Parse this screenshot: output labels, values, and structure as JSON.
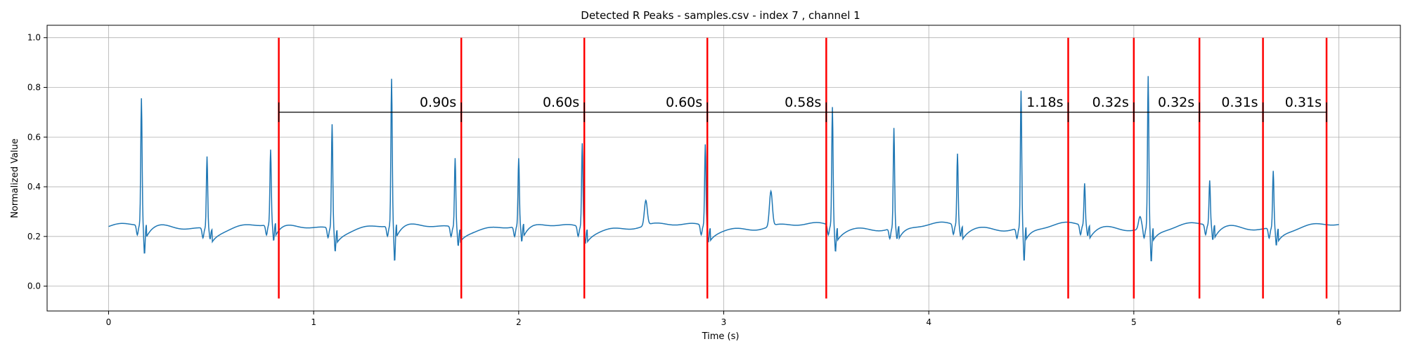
{
  "chart_data": {
    "type": "line",
    "title": "Detected R Peaks - samples.csv - index 7 , channel 1",
    "xlabel": "Time (s)",
    "ylabel": "Normalized Value",
    "xlim": [
      -0.3,
      6.3
    ],
    "ylim": [
      -0.1,
      1.05
    ],
    "x_ticks": [
      0,
      1,
      2,
      3,
      4,
      5,
      6
    ],
    "y_ticks": [
      0.0,
      0.2,
      0.4,
      0.6,
      0.8,
      1.0
    ],
    "x_tick_labels": [
      "0",
      "1",
      "2",
      "3",
      "4",
      "5",
      "6"
    ],
    "y_tick_labels": [
      "0.0",
      "0.2",
      "0.4",
      "0.6",
      "0.8",
      "1.0"
    ],
    "grid": true,
    "colors": {
      "signal": "#1f77b4",
      "peak": "#ff0000",
      "bracket": "#000000"
    },
    "signal": {
      "baseline": 0.24,
      "x_start": 0.0,
      "x_end": 6.0,
      "spikes": [
        {
          "t": 0.16,
          "peak": 0.75,
          "dip": 0.12
        },
        {
          "t": 0.48,
          "peak": 0.53,
          "dip": 0.2
        },
        {
          "t": 0.79,
          "peak": 0.54,
          "dip": 0.17
        },
        {
          "t": 1.09,
          "peak": 0.66,
          "dip": 0.15
        },
        {
          "t": 1.38,
          "peak": 0.83,
          "dip": 0.09
        },
        {
          "t": 1.69,
          "peak": 0.52,
          "dip": 0.17
        },
        {
          "t": 2.0,
          "peak": 0.51,
          "dip": 0.17
        },
        {
          "t": 2.31,
          "peak": 0.58,
          "dip": 0.18
        },
        {
          "t": 2.91,
          "peak": 0.57,
          "dip": 0.18
        },
        {
          "t": 3.53,
          "peak": 0.72,
          "dip": 0.14
        },
        {
          "t": 3.83,
          "peak": 0.64,
          "dip": 0.19
        },
        {
          "t": 4.14,
          "peak": 0.53,
          "dip": 0.2
        },
        {
          "t": 4.45,
          "peak": 0.79,
          "dip": 0.1
        },
        {
          "t": 4.76,
          "peak": 0.41,
          "dip": 0.2
        },
        {
          "t": 5.07,
          "peak": 0.85,
          "dip": 0.1
        },
        {
          "t": 5.37,
          "peak": 0.42,
          "dip": 0.18
        },
        {
          "t": 5.68,
          "peak": 0.47,
          "dip": 0.17
        }
      ],
      "bumps": [
        {
          "t": 2.62,
          "peak": 0.34
        },
        {
          "t": 3.23,
          "peak": 0.38
        },
        {
          "t": 5.03,
          "peak": 0.29
        }
      ]
    },
    "detected_peaks_s": [
      0.83,
      1.72,
      2.32,
      2.92,
      3.5,
      4.68,
      5.0,
      5.32,
      5.63,
      5.94
    ],
    "peak_lines_y": [
      -0.05,
      1.0
    ],
    "bracket_y": 0.7,
    "intervals": [
      {
        "start": 0.83,
        "end": 1.72,
        "label": "0.90s"
      },
      {
        "start": 1.72,
        "end": 2.32,
        "label": "0.60s"
      },
      {
        "start": 2.32,
        "end": 2.92,
        "label": "0.60s"
      },
      {
        "start": 2.92,
        "end": 3.5,
        "label": "0.58s"
      },
      {
        "start": 3.5,
        "end": 4.68,
        "label": "1.18s"
      },
      {
        "start": 4.68,
        "end": 5.0,
        "label": "0.32s"
      },
      {
        "start": 5.0,
        "end": 5.32,
        "label": "0.32s"
      },
      {
        "start": 5.32,
        "end": 5.63,
        "label": "0.31s"
      },
      {
        "start": 5.63,
        "end": 5.94,
        "label": "0.31s"
      }
    ]
  }
}
